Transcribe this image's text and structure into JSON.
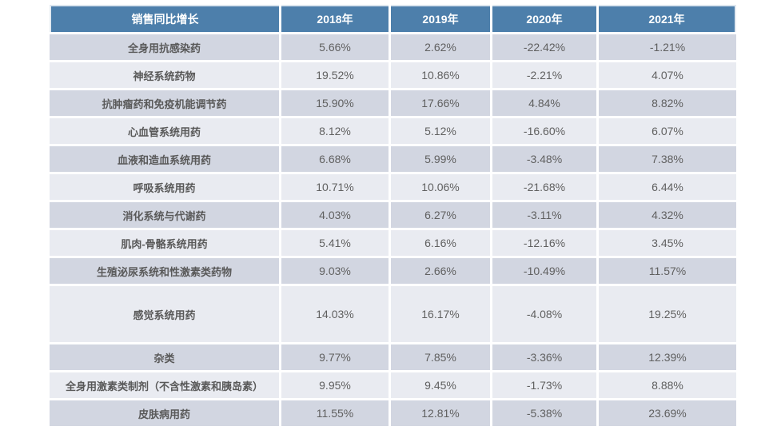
{
  "colors": {
    "header_bg": "#4d7fab",
    "header_text": "#ffffff",
    "band_dark": "#d2d6e1",
    "band_light": "#e9ebf1",
    "label_text": "#595959",
    "value_text": "#606060",
    "page_bg": "#ffffff"
  },
  "table": {
    "header": [
      "销售同比增长",
      "2018年",
      "2019年",
      "2020年",
      "2021年"
    ],
    "rows": [
      {
        "label": "全身用抗感染药",
        "values": [
          "5.66%",
          "2.62%",
          "-22.42%",
          "-1.21%"
        ]
      },
      {
        "label": "神经系统药物",
        "values": [
          "19.52%",
          "10.86%",
          "-2.21%",
          "4.07%"
        ]
      },
      {
        "label": "抗肿瘤药和免疫机能调节药",
        "values": [
          "15.90%",
          "17.66%",
          "4.84%",
          "8.82%"
        ]
      },
      {
        "label": "心血管系统用药",
        "values": [
          "8.12%",
          "5.12%",
          "-16.60%",
          "6.07%"
        ]
      },
      {
        "label": "血液和造血系统用药",
        "values": [
          "6.68%",
          "5.99%",
          "-3.48%",
          "7.38%"
        ]
      },
      {
        "label": "呼吸系统用药",
        "values": [
          "10.71%",
          "10.06%",
          "-21.68%",
          "6.44%"
        ]
      },
      {
        "label": "消化系统与代谢药",
        "values": [
          "4.03%",
          "6.27%",
          "-3.11%",
          "4.32%"
        ]
      },
      {
        "label": "肌肉-骨骼系统用药",
        "values": [
          "5.41%",
          "6.16%",
          "-12.16%",
          "3.45%"
        ]
      },
      {
        "label": "生殖泌尿系统和性激素类药物",
        "values": [
          "9.03%",
          "2.66%",
          "-10.49%",
          "11.57%"
        ]
      },
      {
        "label": "感觉系统用药",
        "values": [
          "14.03%",
          "16.17%",
          "-4.08%",
          "19.25%"
        ]
      },
      {
        "label": "杂类",
        "values": [
          "9.77%",
          "7.85%",
          "-3.36%",
          "12.39%"
        ]
      },
      {
        "label": "全身用激素类制剂（不含性激素和胰岛素）",
        "values": [
          "9.95%",
          "9.45%",
          "-1.73%",
          "8.88%"
        ]
      },
      {
        "label": "皮肤病用药",
        "values": [
          "11.55%",
          "12.81%",
          "-5.38%",
          "23.69%"
        ]
      }
    ]
  },
  "chart_data": {
    "type": "table",
    "title": "销售同比增长",
    "unit": "%",
    "columns": [
      "销售同比增长",
      "2018年",
      "2019年",
      "2020年",
      "2021年"
    ],
    "categories": [
      "全身用抗感染药",
      "神经系统药物",
      "抗肿瘤药和免疫机能调节药",
      "心血管系统用药",
      "血液和造血系统用药",
      "呼吸系统用药",
      "消化系统与代谢药",
      "肌肉-骨骼系统用药",
      "生殖泌尿系统和性激素类药物",
      "感觉系统用药",
      "杂类",
      "全身用激素类制剂（不含性激素和胰岛素）",
      "皮肤病用药"
    ],
    "series": [
      {
        "name": "2018年",
        "values": [
          5.66,
          19.52,
          15.9,
          8.12,
          6.68,
          10.71,
          4.03,
          5.41,
          9.03,
          14.03,
          9.77,
          9.95,
          11.55
        ]
      },
      {
        "name": "2019年",
        "values": [
          2.62,
          10.86,
          17.66,
          5.12,
          5.99,
          10.06,
          6.27,
          6.16,
          2.66,
          16.17,
          7.85,
          9.45,
          12.81
        ]
      },
      {
        "name": "2020年",
        "values": [
          -22.42,
          -2.21,
          4.84,
          -16.6,
          -3.48,
          -21.68,
          -3.11,
          -12.16,
          -10.49,
          -4.08,
          -3.36,
          -1.73,
          -5.38
        ]
      },
      {
        "name": "2021年",
        "values": [
          -1.21,
          4.07,
          8.82,
          6.07,
          7.38,
          6.44,
          4.32,
          3.45,
          11.57,
          19.25,
          12.39,
          8.88,
          23.69
        ]
      }
    ]
  }
}
